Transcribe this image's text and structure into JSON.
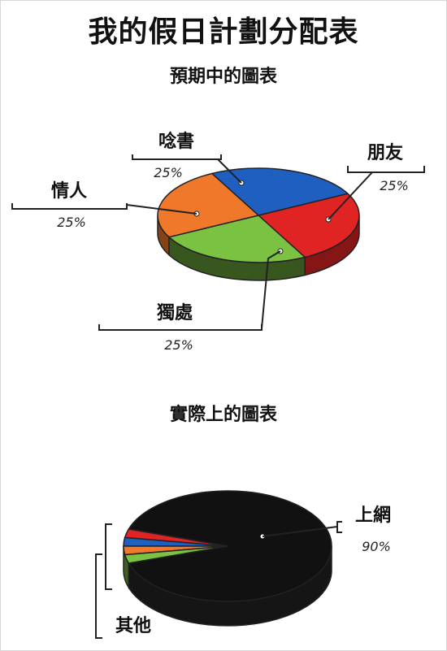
{
  "title": "我的假日計劃分配表",
  "chart_data": [
    {
      "type": "pie",
      "title": "預期中的圖表",
      "slices": [
        {
          "label": "唸書",
          "value": 25,
          "value_text": "25%",
          "color": "#1f5fbf"
        },
        {
          "label": "朋友",
          "value": 25,
          "value_text": "25%",
          "color": "#e02424"
        },
        {
          "label": "獨處",
          "value": 25,
          "value_text": "25%",
          "color": "#7cc242"
        },
        {
          "label": "情人",
          "value": 25,
          "value_text": "25%",
          "color": "#f0782a"
        }
      ]
    },
    {
      "type": "pie",
      "title": "實際上的圖表",
      "slices": [
        {
          "label": "上網",
          "value": 90,
          "value_text": "90%",
          "color": "#111111"
        },
        {
          "label": "其他",
          "value": 10,
          "value_text": "",
          "color": "#888888"
        }
      ],
      "other_breakdown_colors": [
        "#e02424",
        "#1f5fbf",
        "#f0782a",
        "#7cc242"
      ]
    }
  ]
}
